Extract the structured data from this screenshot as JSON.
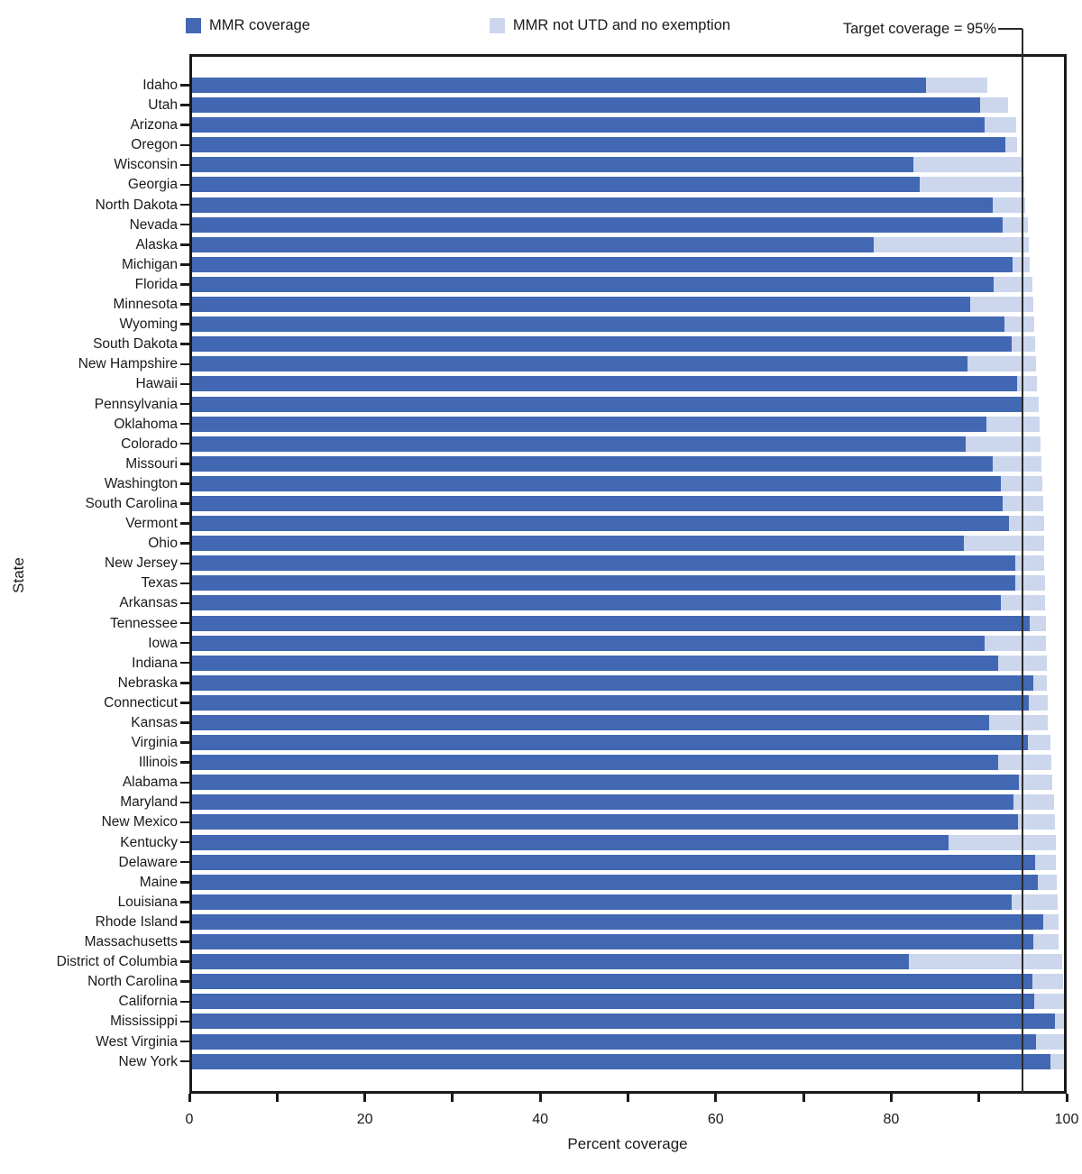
{
  "figure": {
    "legend": [
      {
        "label": "MMR coverage",
        "color": "#4268b3"
      },
      {
        "label": "MMR not UTD and no exemption",
        "color": "#ccd7ee"
      }
    ],
    "target_label": "Target coverage = 95%",
    "xlabel": "Percent coverage",
    "ylabel": "State"
  },
  "chart_data": {
    "type": "bar",
    "orientation": "horizontal",
    "stacked": true,
    "xlabel": "Percent coverage",
    "ylabel": "State",
    "xlim": [
      0,
      100
    ],
    "x_ticks": [
      0,
      10,
      20,
      30,
      40,
      50,
      60,
      70,
      80,
      90,
      100
    ],
    "x_labeled_ticks": [
      0,
      20,
      40,
      60,
      80,
      100
    ],
    "target_line": 95,
    "legend_position": "top",
    "series_names": [
      "MMR coverage",
      "MMR not UTD and no exemption"
    ],
    "colors": {
      "mmr": "#4268b3",
      "not_utd": "#ccd7ee"
    },
    "states": [
      {
        "name": "Idaho",
        "mmr": 84.0,
        "not_utd": 7.0
      },
      {
        "name": "Utah",
        "mmr": 90.1,
        "not_utd": 3.2
      },
      {
        "name": "Arizona",
        "mmr": 90.6,
        "not_utd": 3.6
      },
      {
        "name": "Oregon",
        "mmr": 93.0,
        "not_utd": 1.3
      },
      {
        "name": "Wisconsin",
        "mmr": 82.5,
        "not_utd": 12.6
      },
      {
        "name": "Georgia",
        "mmr": 83.2,
        "not_utd": 12.0
      },
      {
        "name": "North Dakota",
        "mmr": 91.6,
        "not_utd": 3.7
      },
      {
        "name": "Nevada",
        "mmr": 92.7,
        "not_utd": 2.9
      },
      {
        "name": "Alaska",
        "mmr": 78.0,
        "not_utd": 17.7
      },
      {
        "name": "Michigan",
        "mmr": 93.8,
        "not_utd": 2.0
      },
      {
        "name": "Florida",
        "mmr": 91.7,
        "not_utd": 4.4
      },
      {
        "name": "Minnesota",
        "mmr": 89.0,
        "not_utd": 7.2
      },
      {
        "name": "Wyoming",
        "mmr": 92.9,
        "not_utd": 3.4
      },
      {
        "name": "South Dakota",
        "mmr": 93.7,
        "not_utd": 2.7
      },
      {
        "name": "New Hampshire",
        "mmr": 88.7,
        "not_utd": 7.8
      },
      {
        "name": "Hawaii",
        "mmr": 94.3,
        "not_utd": 2.3
      },
      {
        "name": "Pennsylvania",
        "mmr": 95.1,
        "not_utd": 1.7
      },
      {
        "name": "Oklahoma",
        "mmr": 90.9,
        "not_utd": 6.0
      },
      {
        "name": "Colorado",
        "mmr": 88.5,
        "not_utd": 8.5
      },
      {
        "name": "Missouri",
        "mmr": 91.6,
        "not_utd": 5.5
      },
      {
        "name": "Washington",
        "mmr": 92.5,
        "not_utd": 4.7
      },
      {
        "name": "South Carolina",
        "mmr": 92.7,
        "not_utd": 4.6
      },
      {
        "name": "Vermont",
        "mmr": 93.4,
        "not_utd": 4.0
      },
      {
        "name": "Ohio",
        "mmr": 88.3,
        "not_utd": 9.1
      },
      {
        "name": "New Jersey",
        "mmr": 94.1,
        "not_utd": 3.3
      },
      {
        "name": "Texas",
        "mmr": 94.1,
        "not_utd": 3.4
      },
      {
        "name": "Arkansas",
        "mmr": 92.5,
        "not_utd": 5.0
      },
      {
        "name": "Tennessee",
        "mmr": 95.8,
        "not_utd": 1.8
      },
      {
        "name": "Iowa",
        "mmr": 90.6,
        "not_utd": 7.0
      },
      {
        "name": "Indiana",
        "mmr": 92.2,
        "not_utd": 5.5
      },
      {
        "name": "Nebraska",
        "mmr": 96.2,
        "not_utd": 1.5
      },
      {
        "name": "Connecticut",
        "mmr": 95.7,
        "not_utd": 2.1
      },
      {
        "name": "Kansas",
        "mmr": 91.2,
        "not_utd": 6.6
      },
      {
        "name": "Virginia",
        "mmr": 95.6,
        "not_utd": 2.6
      },
      {
        "name": "Illinois",
        "mmr": 92.2,
        "not_utd": 6.1
      },
      {
        "name": "Alabama",
        "mmr": 94.6,
        "not_utd": 3.8
      },
      {
        "name": "Maryland",
        "mmr": 93.9,
        "not_utd": 4.7
      },
      {
        "name": "New Mexico",
        "mmr": 94.4,
        "not_utd": 4.3
      },
      {
        "name": "Kentucky",
        "mmr": 86.5,
        "not_utd": 12.3
      },
      {
        "name": "Delaware",
        "mmr": 96.4,
        "not_utd": 2.4
      },
      {
        "name": "Maine",
        "mmr": 96.7,
        "not_utd": 2.2
      },
      {
        "name": "Louisiana",
        "mmr": 93.7,
        "not_utd": 5.3
      },
      {
        "name": "Rhode Island",
        "mmr": 97.3,
        "not_utd": 1.8
      },
      {
        "name": "Massachusetts",
        "mmr": 96.2,
        "not_utd": 2.9
      },
      {
        "name": "District of Columbia",
        "mmr": 82.0,
        "not_utd": 17.5
      },
      {
        "name": "North Carolina",
        "mmr": 96.1,
        "not_utd": 3.5
      },
      {
        "name": "California",
        "mmr": 96.3,
        "not_utd": 3.4
      },
      {
        "name": "Mississippi",
        "mmr": 98.7,
        "not_utd": 1.1
      },
      {
        "name": "West Virginia",
        "mmr": 96.5,
        "not_utd": 3.4
      },
      {
        "name": "New York",
        "mmr": 98.1,
        "not_utd": 1.8
      }
    ]
  }
}
